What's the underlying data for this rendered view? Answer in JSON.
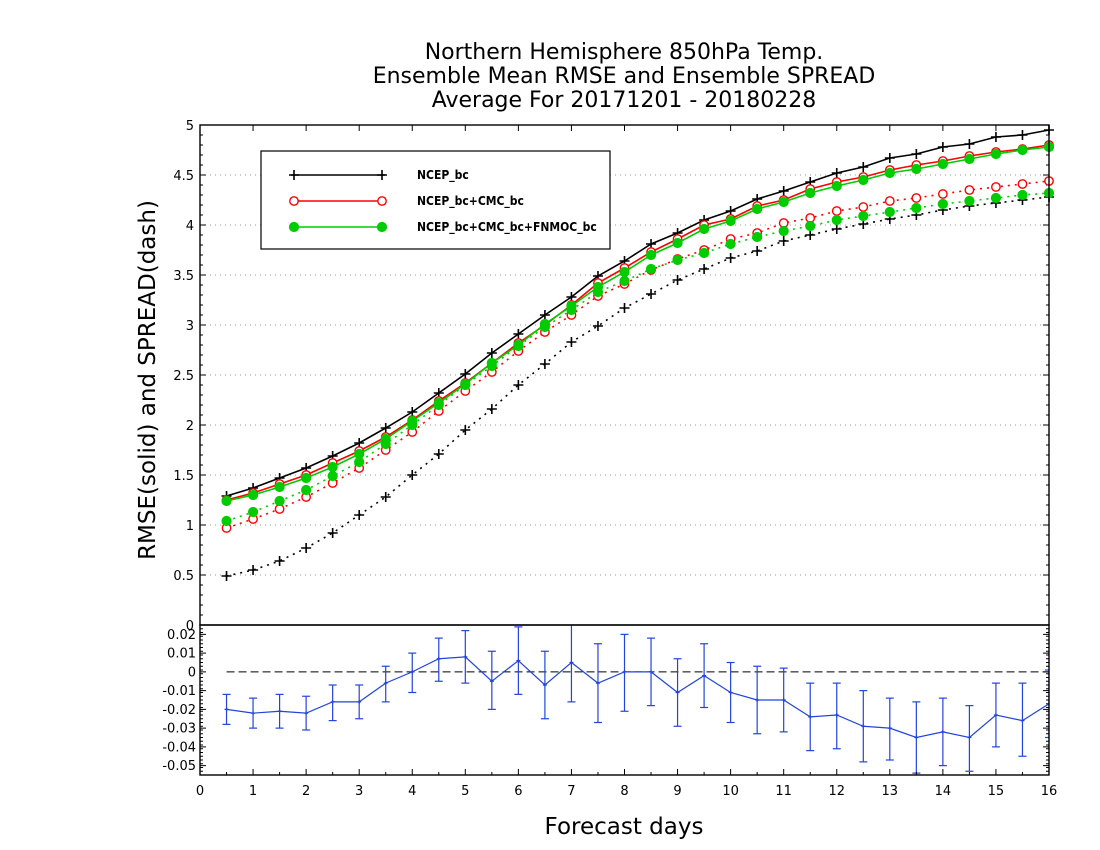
{
  "chart_data": [
    {
      "type": "line",
      "title": "Northern Hemisphere 850hPa Temp.",
      "subtitle": [
        "Ensemble Mean RMSE and Ensemble SPREAD",
        "Average For 20171201 - 20180228"
      ],
      "xlabel": "Forecast days",
      "ylabel": "RMSE(solid) and SPREAD(dash)",
      "xlim": [
        0,
        16
      ],
      "ylim": [
        0,
        5
      ],
      "xticks": [
        "0",
        "1",
        "2",
        "3",
        "4",
        "5",
        "6",
        "7",
        "8",
        "9",
        "10",
        "11",
        "12",
        "13",
        "14",
        "15",
        "16"
      ],
      "yticks": [
        "0",
        "0.5",
        "1",
        "1.5",
        "2",
        "2.5",
        "3",
        "3.5",
        "4",
        "4.5",
        "5"
      ],
      "grid": true,
      "legend_placement": "top-left",
      "x": [
        0.5,
        1,
        1.5,
        2,
        2.5,
        3,
        3.5,
        4,
        4.5,
        5,
        5.5,
        6,
        6.5,
        7,
        7.5,
        8,
        8.5,
        9,
        9.5,
        10,
        10.5,
        11,
        11.5,
        12,
        12.5,
        13,
        13.5,
        14,
        14.5,
        15,
        15.5,
        16
      ],
      "series": [
        {
          "name": "NCEP_bc",
          "color": "#000000",
          "marker": "plus",
          "rmse": [
            1.29,
            1.37,
            1.47,
            1.57,
            1.69,
            1.82,
            1.97,
            2.13,
            2.32,
            2.51,
            2.72,
            2.91,
            3.1,
            3.28,
            3.49,
            3.64,
            3.81,
            3.92,
            4.05,
            4.14,
            4.26,
            4.34,
            4.43,
            4.52,
            4.58,
            4.67,
            4.71,
            4.78,
            4.81,
            4.88,
            4.9,
            4.95
          ],
          "spread": [
            0.49,
            0.55,
            0.64,
            0.77,
            0.92,
            1.1,
            1.28,
            1.5,
            1.71,
            1.95,
            2.16,
            2.4,
            2.61,
            2.83,
            2.99,
            3.17,
            3.31,
            3.45,
            3.56,
            3.67,
            3.74,
            3.84,
            3.9,
            3.96,
            4.01,
            4.06,
            4.1,
            4.15,
            4.19,
            4.22,
            4.25,
            4.28
          ]
        },
        {
          "name": "NCEP_bc+CMC_bc",
          "color": "#ff0000",
          "marker": "open-circle",
          "rmse": [
            1.25,
            1.32,
            1.41,
            1.5,
            1.62,
            1.74,
            1.88,
            2.05,
            2.24,
            2.42,
            2.62,
            2.82,
            3.0,
            3.2,
            3.42,
            3.57,
            3.73,
            3.86,
            4.0,
            4.06,
            4.19,
            4.25,
            4.36,
            4.43,
            4.48,
            4.55,
            4.6,
            4.64,
            4.69,
            4.73,
            4.76,
            4.8
          ],
          "spread": [
            0.97,
            1.06,
            1.16,
            1.28,
            1.42,
            1.57,
            1.75,
            1.93,
            2.14,
            2.34,
            2.53,
            2.74,
            2.93,
            3.1,
            3.29,
            3.41,
            3.55,
            3.66,
            3.75,
            3.86,
            3.92,
            4.02,
            4.07,
            4.14,
            4.18,
            4.24,
            4.27,
            4.31,
            4.35,
            4.38,
            4.41,
            4.44
          ]
        },
        {
          "name": "NCEP_bc+CMC_bc+FNMOC_bc",
          "color": "#00cc00",
          "marker": "filled-circle",
          "rmse": [
            1.24,
            1.3,
            1.38,
            1.47,
            1.58,
            1.71,
            1.86,
            2.04,
            2.22,
            2.41,
            2.62,
            2.8,
            3.01,
            3.19,
            3.38,
            3.53,
            3.7,
            3.82,
            3.96,
            4.04,
            4.16,
            4.23,
            4.32,
            4.39,
            4.45,
            4.52,
            4.56,
            4.61,
            4.66,
            4.71,
            4.75,
            4.78
          ],
          "spread": [
            1.04,
            1.13,
            1.24,
            1.35,
            1.49,
            1.63,
            1.81,
            2.0,
            2.2,
            2.4,
            2.59,
            2.79,
            2.98,
            3.15,
            3.33,
            3.44,
            3.56,
            3.65,
            3.72,
            3.81,
            3.88,
            3.94,
            3.99,
            4.05,
            4.09,
            4.13,
            4.17,
            4.21,
            4.24,
            4.27,
            4.3,
            4.32
          ]
        }
      ]
    },
    {
      "type": "line",
      "xlabel": "Forecast days",
      "xlim": [
        0,
        16
      ],
      "ylim": [
        -0.055,
        0.025
      ],
      "yticks": [
        "0.02",
        "0.01",
        "0",
        "-0.01",
        "-0.02",
        "-0.03",
        "-0.04",
        "-0.05"
      ],
      "zero_line": true,
      "series": [
        {
          "color": "#2244dd",
          "x": [
            0.5,
            1,
            1.5,
            2,
            2.5,
            3,
            3.5,
            4,
            4.5,
            5,
            5.5,
            6,
            6.5,
            7,
            7.5,
            8,
            8.5,
            9,
            9.5,
            10,
            10.5,
            11,
            11.5,
            12,
            12.5,
            13,
            13.5,
            14,
            14.5,
            15,
            15.5,
            16
          ],
          "values": [
            -0.02,
            -0.022,
            -0.021,
            -0.022,
            -0.016,
            -0.016,
            -0.006,
            0.0,
            0.007,
            0.008,
            -0.005,
            0.006,
            -0.007,
            0.005,
            -0.006,
            0.0,
            0.0,
            -0.011,
            -0.002,
            -0.011,
            -0.015,
            -0.015,
            -0.024,
            -0.023,
            -0.029,
            -0.03,
            -0.035,
            -0.032,
            -0.035,
            -0.023,
            -0.026,
            -0.017
          ],
          "error_low": [
            -0.028,
            -0.03,
            -0.03,
            -0.031,
            -0.026,
            -0.025,
            -0.016,
            -0.011,
            -0.005,
            -0.006,
            -0.02,
            -0.012,
            -0.025,
            -0.016,
            -0.027,
            -0.021,
            -0.018,
            -0.029,
            -0.019,
            -0.027,
            -0.033,
            -0.032,
            -0.042,
            -0.041,
            -0.048,
            -0.047,
            -0.054,
            -0.05,
            -0.053,
            -0.04,
            -0.045,
            -0.035
          ],
          "error_high": [
            -0.012,
            -0.014,
            -0.012,
            -0.013,
            -0.007,
            -0.007,
            0.003,
            0.01,
            0.018,
            0.022,
            0.011,
            0.024,
            0.011,
            0.026,
            0.015,
            0.02,
            0.018,
            0.007,
            0.015,
            0.005,
            0.003,
            0.002,
            -0.006,
            -0.006,
            -0.01,
            -0.014,
            -0.016,
            -0.014,
            -0.018,
            -0.006,
            -0.006,
            0.001
          ]
        }
      ]
    }
  ]
}
